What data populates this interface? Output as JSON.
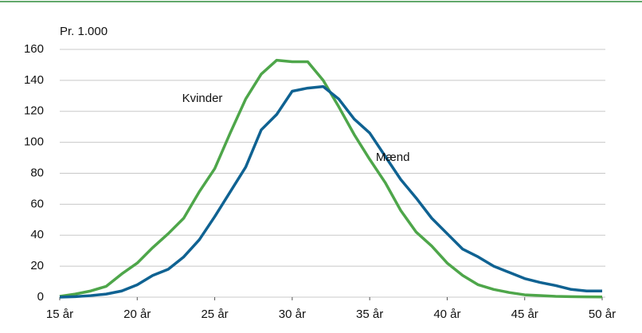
{
  "chart_data": {
    "type": "line",
    "ylabel": "Pr. 1.000",
    "x": [
      15,
      16,
      17,
      18,
      19,
      20,
      21,
      22,
      23,
      24,
      25,
      26,
      27,
      28,
      29,
      30,
      31,
      32,
      33,
      34,
      35,
      36,
      37,
      38,
      39,
      40,
      41,
      42,
      43,
      44,
      45,
      46,
      47,
      48,
      49,
      50
    ],
    "series": [
      {
        "name": "Kvinder",
        "color": "#4ea64a",
        "values": [
          0.5,
          2,
          4,
          7,
          15,
          22,
          32,
          41,
          51,
          68,
          83,
          106,
          128,
          144,
          153,
          152,
          152,
          140,
          123,
          105,
          89,
          74,
          56,
          42,
          33,
          22,
          14,
          8,
          5,
          3,
          1.5,
          1,
          0.5,
          0.3,
          0.2,
          0.1
        ]
      },
      {
        "name": "Mænd",
        "color": "#0f6292",
        "values": [
          0,
          0.3,
          1,
          2,
          4,
          8,
          14,
          18,
          26,
          37,
          52,
          68,
          84,
          108,
          118,
          133,
          135,
          136,
          128,
          115,
          106,
          91,
          76,
          64,
          51,
          41,
          31,
          26,
          20,
          16,
          12,
          9.5,
          7.5,
          5,
          4,
          4
        ]
      }
    ],
    "xlim": [
      15,
      50
    ],
    "xticks": [
      {
        "value": 15,
        "label": "15 år"
      },
      {
        "value": 20,
        "label": "20 år"
      },
      {
        "value": 25,
        "label": "25 år"
      },
      {
        "value": 30,
        "label": "30 år"
      },
      {
        "value": 35,
        "label": "35 år"
      },
      {
        "value": 40,
        "label": "40 år"
      },
      {
        "value": 45,
        "label": "45 år"
      },
      {
        "value": 50,
        "label": "50 år"
      }
    ],
    "ylim": [
      0,
      160
    ],
    "yticks": [
      0,
      20,
      40,
      60,
      80,
      100,
      120,
      140,
      160
    ],
    "grid": true
  }
}
